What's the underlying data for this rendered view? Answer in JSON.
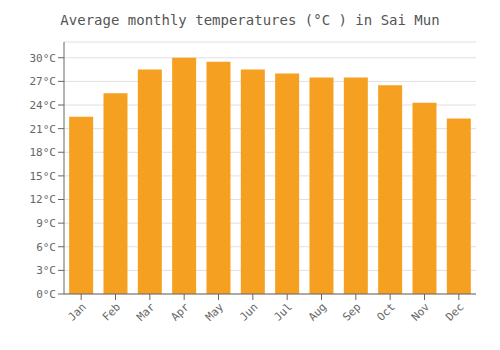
{
  "chart_data": {
    "type": "bar",
    "title": "Average monthly temperatures (°C ) in Sai Mun",
    "categories": [
      "Jan",
      "Feb",
      "Mar",
      "Apr",
      "May",
      "Jun",
      "Jul",
      "Aug",
      "Sep",
      "Oct",
      "Nov",
      "Dec"
    ],
    "values": [
      22.5,
      25.5,
      28.5,
      30.0,
      29.5,
      28.5,
      28.0,
      27.5,
      27.5,
      26.5,
      24.3,
      22.3
    ],
    "color": "#F5A020",
    "ylim": [
      0,
      32
    ],
    "yticks": [
      {
        "value": 0,
        "label": "0°C"
      },
      {
        "value": 3,
        "label": "3°C"
      },
      {
        "value": 6,
        "label": "6°C"
      },
      {
        "value": 9,
        "label": "9°C"
      },
      {
        "value": 12,
        "label": "12°C"
      },
      {
        "value": 15,
        "label": "15°C"
      },
      {
        "value": 18,
        "label": "18°C"
      },
      {
        "value": 21,
        "label": "21°C"
      },
      {
        "value": 24,
        "label": "24°C"
      },
      {
        "value": 27,
        "label": "27°C"
      },
      {
        "value": 30,
        "label": "30°C"
      }
    ],
    "grid": true
  }
}
